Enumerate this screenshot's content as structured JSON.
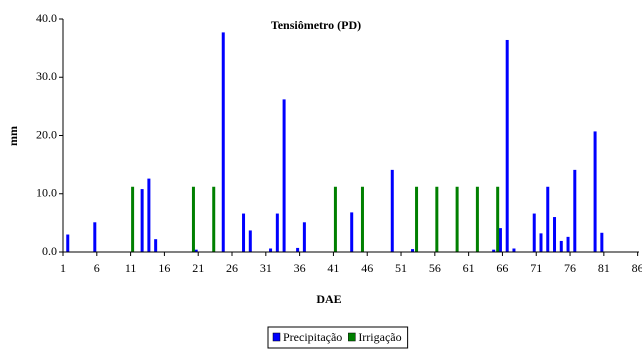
{
  "chart_data": {
    "type": "bar",
    "title": "Tensiômetro (PD)",
    "xlabel": "DAE",
    "ylabel": "mm",
    "x": [
      1,
      2,
      3,
      4,
      5,
      6,
      7,
      8,
      9,
      10,
      11,
      12,
      13,
      14,
      15,
      16,
      17,
      18,
      19,
      20,
      21,
      22,
      23,
      24,
      25,
      26,
      27,
      28,
      29,
      30,
      31,
      32,
      33,
      34,
      35,
      36,
      37,
      38,
      39,
      40,
      41,
      42,
      43,
      44,
      45,
      46,
      47,
      48,
      49,
      50,
      51,
      52,
      53,
      54,
      55,
      56,
      57,
      58,
      59,
      60,
      61,
      62,
      63,
      64,
      65,
      66,
      67,
      68,
      69,
      70,
      71,
      72,
      73,
      74,
      75,
      76,
      77,
      78,
      79,
      80,
      81,
      82,
      83,
      84,
      85,
      86
    ],
    "xlim": [
      1,
      86.2
    ],
    "xticks": [
      1,
      6,
      11,
      16,
      21,
      26,
      31,
      36,
      41,
      46,
      51,
      56,
      61,
      66,
      71,
      76,
      81,
      86
    ],
    "ylim": [
      0,
      40
    ],
    "yticks": [
      {
        "value": 0,
        "label": "0.0"
      },
      {
        "value": 10,
        "label": "10.0"
      },
      {
        "value": 20,
        "label": "20.0"
      },
      {
        "value": 30,
        "label": "30.0"
      },
      {
        "value": 40,
        "label": "40.0"
      }
    ],
    "series": [
      {
        "name": "Precipitação",
        "color": "#0000ff",
        "values": [
          null,
          3.0,
          null,
          null,
          null,
          5.1,
          null,
          null,
          null,
          null,
          null,
          null,
          10.8,
          12.6,
          2.2,
          null,
          null,
          null,
          null,
          null,
          0.4,
          null,
          null,
          null,
          37.7,
          null,
          null,
          6.6,
          3.7,
          null,
          null,
          0.6,
          6.6,
          26.2,
          null,
          0.7,
          5.1,
          null,
          null,
          null,
          null,
          null,
          null,
          6.8,
          null,
          null,
          null,
          null,
          null,
          14.1,
          null,
          null,
          0.5,
          null,
          null,
          null,
          null,
          null,
          null,
          null,
          null,
          null,
          null,
          null,
          0.4,
          4.1,
          36.4,
          0.6,
          null,
          null,
          6.6,
          3.2,
          11.2,
          6.0,
          1.9,
          2.6,
          14.1,
          null,
          null,
          20.7,
          3.3,
          null,
          null,
          null,
          null,
          null
        ]
      },
      {
        "name": "Irrigação",
        "color": "#008000",
        "values": [
          null,
          null,
          null,
          null,
          null,
          null,
          null,
          null,
          null,
          null,
          11.2,
          null,
          null,
          null,
          null,
          null,
          null,
          null,
          null,
          11.2,
          null,
          null,
          11.2,
          null,
          null,
          null,
          null,
          null,
          null,
          null,
          null,
          null,
          null,
          null,
          null,
          null,
          null,
          null,
          null,
          null,
          11.2,
          null,
          null,
          null,
          11.2,
          null,
          null,
          null,
          null,
          null,
          null,
          null,
          11.2,
          null,
          null,
          11.2,
          null,
          null,
          11.2,
          null,
          null,
          11.2,
          null,
          null,
          11.2,
          null,
          null,
          null,
          null,
          null,
          null,
          null,
          null,
          null,
          null,
          null,
          null,
          null,
          null,
          null,
          null,
          null,
          null,
          null,
          null,
          null
        ]
      }
    ],
    "legend": "bottom"
  }
}
